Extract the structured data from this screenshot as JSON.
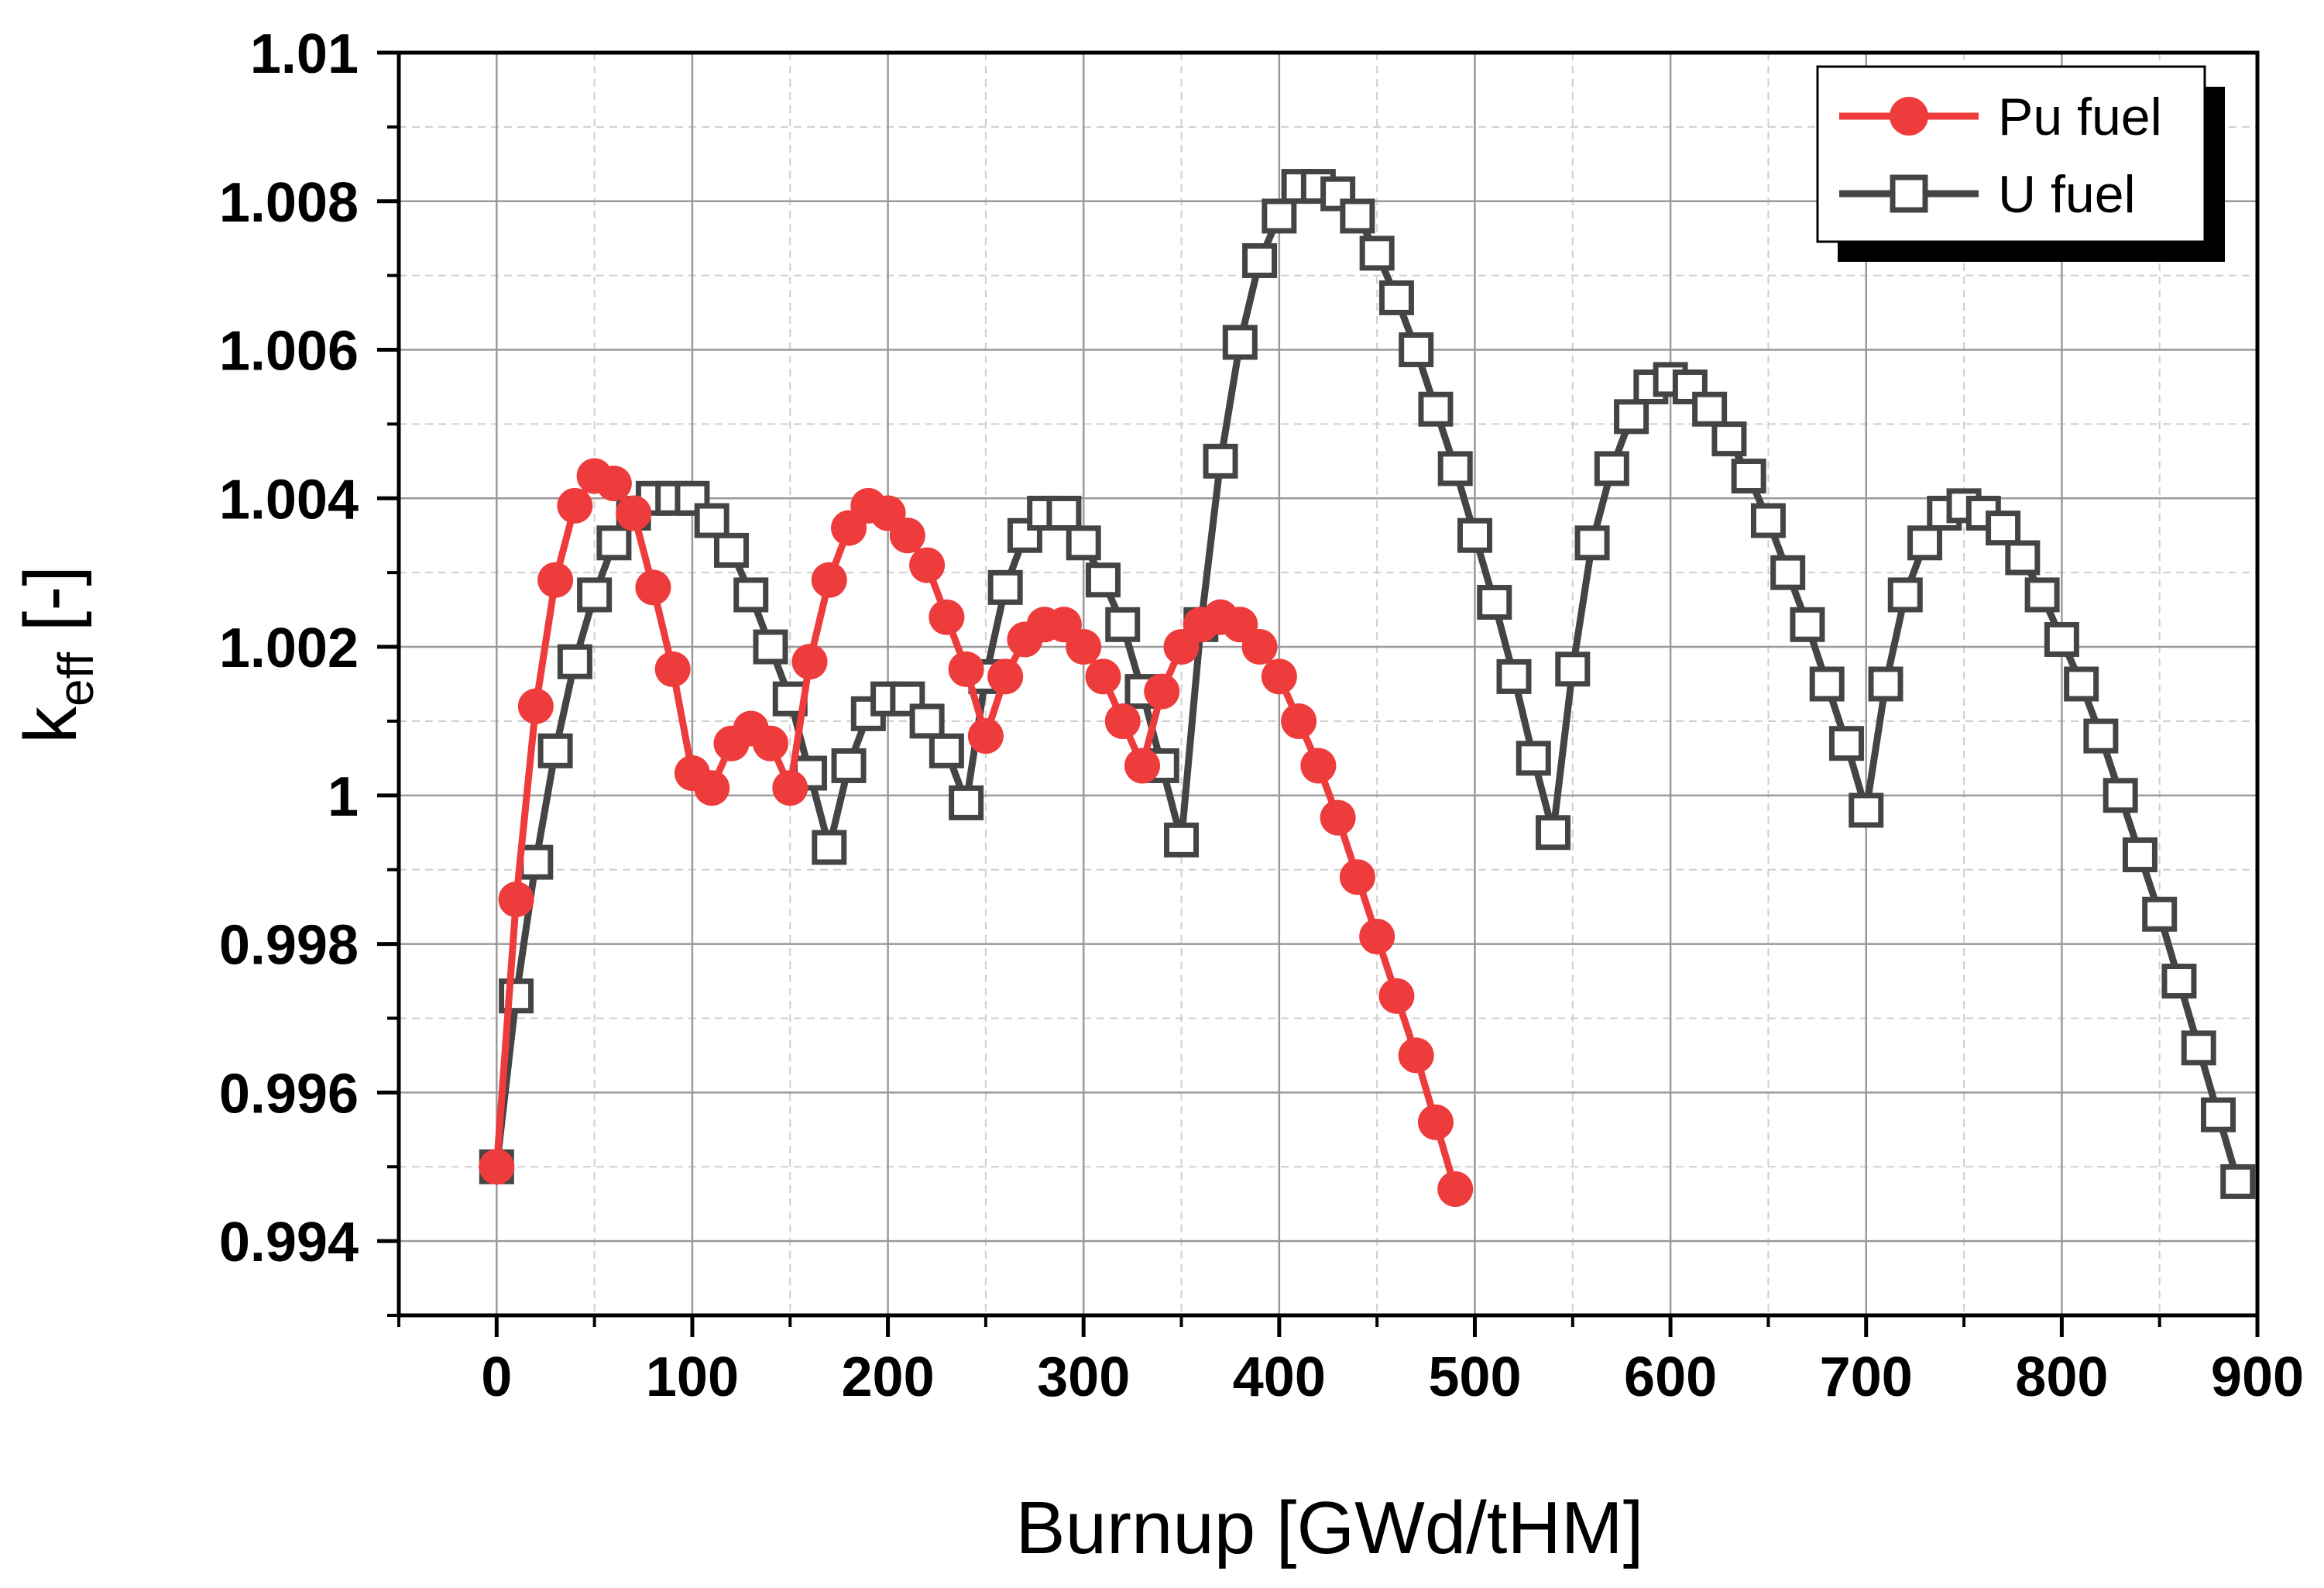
{
  "chart_data": {
    "type": "line",
    "title": "",
    "xlabel": "Burnup [GWd/tHM]",
    "ylabel": {
      "main": "k",
      "sub": "eff",
      "suffix": " [-]"
    },
    "xlim": [
      -50,
      900
    ],
    "ylim": [
      0.993,
      1.01
    ],
    "x_major_ticks": [
      0,
      100,
      200,
      300,
      400,
      500,
      600,
      700,
      800,
      900
    ],
    "x_tick_labels": [
      "0",
      "100",
      "200",
      "300",
      "400",
      "500",
      "600",
      "700",
      "800",
      "900"
    ],
    "y_major_ticks": [
      0.994,
      0.996,
      0.998,
      1.0,
      1.002,
      1.004,
      1.006,
      1.008,
      1.01
    ],
    "y_tick_labels": [
      "0.994",
      "0.996",
      "0.998",
      "1",
      "1.002",
      "1.004",
      "1.006",
      "1.008",
      "1.01"
    ],
    "grid": true,
    "legend_position": "top-right",
    "series": [
      {
        "name": "Pu fuel",
        "color": "#ee3b3b",
        "marker": "filled-circle",
        "x": [
          0,
          10,
          20,
          30,
          40,
          50,
          60,
          70,
          80,
          90,
          100,
          110,
          120,
          130,
          140,
          150,
          160,
          170,
          180,
          190,
          200,
          210,
          220,
          230,
          240,
          250,
          260,
          270,
          280,
          290,
          300,
          310,
          320,
          330,
          340,
          350,
          360,
          370,
          380,
          390,
          400,
          410,
          420,
          430,
          440,
          450,
          460,
          470,
          480,
          490
        ],
        "y": [
          0.995,
          0.9986,
          1.0012,
          1.0029,
          1.0039,
          1.0043,
          1.0042,
          1.0038,
          1.0028,
          1.0017,
          1.0003,
          1.0001,
          1.0007,
          1.0009,
          1.0007,
          1.0001,
          1.0018,
          1.0029,
          1.0036,
          1.0039,
          1.0038,
          1.0035,
          1.0031,
          1.0024,
          1.0017,
          1.0008,
          1.0016,
          1.0021,
          1.0023,
          1.0023,
          1.002,
          1.0016,
          1.001,
          1.0004,
          1.0014,
          1.002,
          1.0023,
          1.0024,
          1.0023,
          1.002,
          1.0016,
          1.001,
          1.0004,
          0.9997,
          0.9989,
          0.9981,
          0.9973,
          0.9965,
          0.9956,
          0.9947
        ]
      },
      {
        "name": "U fuel",
        "color": "#444444",
        "marker": "open-square",
        "x": [
          0,
          10,
          20,
          30,
          40,
          50,
          60,
          70,
          80,
          90,
          100,
          110,
          120,
          130,
          140,
          150,
          160,
          170,
          180,
          190,
          200,
          210,
          220,
          230,
          240,
          250,
          260,
          270,
          280,
          290,
          300,
          310,
          320,
          330,
          340,
          350,
          360,
          370,
          380,
          390,
          400,
          410,
          420,
          430,
          440,
          450,
          460,
          470,
          480,
          490,
          500,
          510,
          520,
          530,
          540,
          550,
          560,
          570,
          580,
          590,
          600,
          610,
          620,
          630,
          640,
          650,
          660,
          670,
          680,
          690,
          700,
          710,
          720,
          730,
          740,
          750,
          760,
          770,
          780,
          790,
          800,
          810,
          820,
          830,
          840,
          850,
          860,
          870,
          880,
          890
        ],
        "y": [
          0.995,
          0.9973,
          0.9991,
          1.0006,
          1.0018,
          1.0027,
          1.0034,
          1.0038,
          1.004,
          1.004,
          1.004,
          1.0037,
          1.0033,
          1.0027,
          1.002,
          1.0013,
          1.0003,
          0.9993,
          1.0004,
          1.0011,
          1.0013,
          1.0013,
          1.001,
          1.0006,
          0.9999,
          1.0016,
          1.0028,
          1.0035,
          1.0038,
          1.0038,
          1.0034,
          1.0029,
          1.0023,
          1.0014,
          1.0004,
          0.9994,
          1.0023,
          1.0045,
          1.0061,
          1.0072,
          1.0078,
          1.0082,
          1.0082,
          1.0081,
          1.0078,
          1.0073,
          1.0067,
          1.006,
          1.0052,
          1.0044,
          1.0035,
          1.0026,
          1.0016,
          1.0005,
          0.9995,
          1.0017,
          1.0034,
          1.0044,
          1.0051,
          1.0055,
          1.0056,
          1.0055,
          1.0052,
          1.0048,
          1.0043,
          1.0037,
          1.003,
          1.0023,
          1.0015,
          1.0007,
          0.9998,
          1.0015,
          1.0027,
          1.0034,
          1.0038,
          1.0039,
          1.0038,
          1.0036,
          1.0032,
          1.0027,
          1.0021,
          1.0015,
          1.0008,
          1.0,
          0.9992,
          0.9984,
          0.9975,
          0.9966,
          0.9957,
          0.9948
        ]
      }
    ]
  }
}
